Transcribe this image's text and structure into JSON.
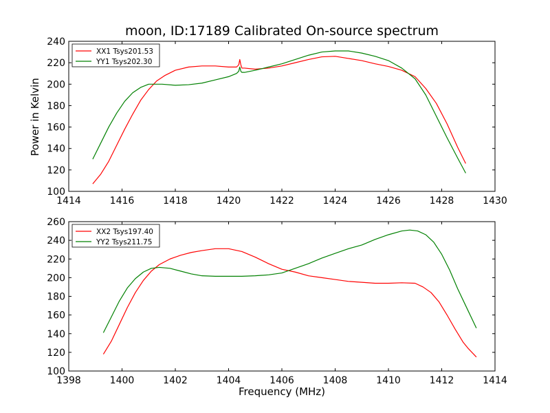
{
  "chart_data": [
    {
      "type": "line",
      "title": "moon, ID:17189 Calibrated On-source spectrum",
      "xlabel": "",
      "ylabel": "Power in Kelvin",
      "xlim": [
        1414,
        1430
      ],
      "ylim": [
        100,
        240
      ],
      "xticks": [
        1414,
        1416,
        1418,
        1420,
        1422,
        1424,
        1426,
        1428,
        1430
      ],
      "yticks": [
        100,
        120,
        140,
        160,
        180,
        200,
        220,
        240
      ],
      "grid": false,
      "legend_position": "top-left",
      "series": [
        {
          "name": "XX1 Tsys201.53",
          "color": "#ff0000",
          "x": [
            1414.9,
            1415.2,
            1415.5,
            1415.8,
            1416.1,
            1416.4,
            1416.7,
            1417.0,
            1417.3,
            1417.6,
            1418.0,
            1418.5,
            1419.0,
            1419.5,
            1420.0,
            1420.3,
            1420.38,
            1420.42,
            1420.46,
            1420.5,
            1420.6,
            1421.0,
            1421.5,
            1422.0,
            1422.5,
            1423.0,
            1423.5,
            1424.0,
            1424.5,
            1425.0,
            1425.5,
            1426.0,
            1426.5,
            1427.0,
            1427.4,
            1427.8,
            1428.2,
            1428.6,
            1428.9
          ],
          "y": [
            107,
            116,
            128,
            143,
            158,
            172,
            185,
            195,
            203,
            208,
            213,
            216,
            217,
            217,
            216,
            216,
            218,
            223,
            218,
            215,
            215,
            214,
            215,
            217,
            220,
            223,
            225.5,
            226,
            224,
            222,
            219,
            216.5,
            213,
            207,
            196,
            182,
            163,
            141,
            126
          ]
        },
        {
          "name": "YY1 Tsys202.30",
          "color": "#008000",
          "x": [
            1414.9,
            1415.2,
            1415.5,
            1415.8,
            1416.1,
            1416.4,
            1416.7,
            1417.0,
            1417.5,
            1418.0,
            1418.5,
            1419.0,
            1419.5,
            1420.0,
            1420.3,
            1420.38,
            1420.42,
            1420.46,
            1420.5,
            1420.6,
            1421.0,
            1421.5,
            1422.0,
            1422.5,
            1423.0,
            1423.5,
            1424.0,
            1424.5,
            1425.0,
            1425.5,
            1426.0,
            1426.5,
            1427.0,
            1427.4,
            1427.8,
            1428.2,
            1428.6,
            1428.9
          ],
          "y": [
            130,
            145,
            160,
            173,
            184,
            192,
            197,
            200,
            200,
            199,
            199.5,
            201,
            204,
            207,
            210,
            212,
            216,
            212,
            211,
            211,
            213,
            216,
            219,
            223,
            227,
            230,
            231,
            231,
            229,
            226,
            222,
            215,
            205,
            190,
            170,
            150,
            131,
            117
          ]
        }
      ]
    },
    {
      "type": "line",
      "title": "",
      "xlabel": "Frequency (MHz)",
      "ylabel": "",
      "xlim": [
        1398,
        1414
      ],
      "ylim": [
        100,
        260
      ],
      "xticks": [
        1398,
        1400,
        1402,
        1404,
        1406,
        1408,
        1410,
        1412,
        1414
      ],
      "yticks": [
        100,
        120,
        140,
        160,
        180,
        200,
        220,
        240,
        260
      ],
      "grid": false,
      "legend_position": "top-left",
      "series": [
        {
          "name": "XX2 Tsys197.40",
          "color": "#ff0000",
          "x": [
            1399.3,
            1399.6,
            1399.9,
            1400.2,
            1400.5,
            1400.8,
            1401.1,
            1401.4,
            1401.8,
            1402.2,
            1402.6,
            1403.0,
            1403.5,
            1404.0,
            1404.5,
            1405.0,
            1405.5,
            1406.0,
            1406.5,
            1407.0,
            1407.5,
            1408.0,
            1408.5,
            1409.0,
            1409.5,
            1410.0,
            1410.5,
            1411.0,
            1411.3,
            1411.6,
            1411.9,
            1412.2,
            1412.5,
            1412.8,
            1413.0,
            1413.3
          ],
          "y": [
            118,
            132,
            150,
            168,
            184,
            197,
            207,
            214,
            220,
            224,
            227,
            229,
            231,
            231,
            228,
            222,
            215,
            209,
            206,
            202,
            200,
            198,
            196,
            195,
            194,
            194,
            194.5,
            194,
            190,
            184,
            174,
            160,
            145,
            131,
            124,
            115
          ]
        },
        {
          "name": "YY2 Tsys211.75",
          "color": "#008000",
          "x": [
            1399.3,
            1399.6,
            1399.9,
            1400.2,
            1400.5,
            1400.8,
            1401.1,
            1401.4,
            1401.8,
            1402.2,
            1402.6,
            1403.0,
            1403.5,
            1404.0,
            1404.5,
            1405.0,
            1405.5,
            1406.0,
            1406.5,
            1407.0,
            1407.5,
            1408.0,
            1408.5,
            1409.0,
            1409.5,
            1410.0,
            1410.5,
            1410.8,
            1411.1,
            1411.4,
            1411.7,
            1412.0,
            1412.3,
            1412.6,
            1412.9,
            1413.3
          ],
          "y": [
            141,
            158,
            175,
            189,
            199,
            206,
            210,
            211,
            210,
            207,
            204,
            202,
            201.5,
            201.5,
            201.5,
            202,
            203,
            205,
            210,
            215,
            221,
            226,
            231,
            235,
            241,
            246,
            250,
            251,
            250,
            246,
            238,
            225,
            208,
            188,
            170,
            146
          ]
        }
      ]
    }
  ]
}
